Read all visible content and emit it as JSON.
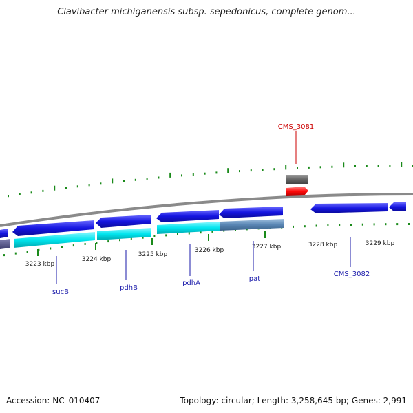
{
  "title": "Clavibacter michiganensis subsp. sepedonicus, complete genom...",
  "footer": {
    "accession": "Accession: NC_010407",
    "topology": "Topology: circular; Length: 3,258,645 bp; Genes: 2,991"
  },
  "colors": {
    "backbone": "#8a8a8a",
    "tick_green": "#1a8a1a",
    "gene_blue": "#1515e0",
    "gene_cyan": "#00e5ee",
    "gene_steel": "#5a86b4",
    "gene_gray": "#666666",
    "gene_red": "#ff0a0a",
    "label_blue": "#1a1aaa",
    "label_red": "#cc0000",
    "scale_text": "#222222"
  },
  "scale_labels": [
    "3223 kbp",
    "3224 kbp",
    "3225 kbp",
    "3226 kbp",
    "3227 kbp",
    "3228 kbp",
    "3229 kbp"
  ],
  "gene_labels": [
    {
      "text": "sucB",
      "color": "blue"
    },
    {
      "text": "pdhB",
      "color": "blue"
    },
    {
      "text": "pdhA",
      "color": "blue"
    },
    {
      "text": "pat",
      "color": "blue"
    },
    {
      "text": "CMS_3082",
      "color": "blue"
    },
    {
      "text": "CMS_3081",
      "color": "red"
    }
  ]
}
